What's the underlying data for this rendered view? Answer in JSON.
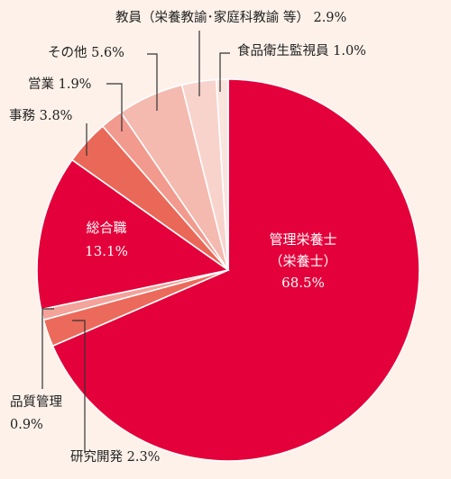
{
  "colors": {
    "background": "#fdf1e9",
    "leader": "#333333",
    "text": "#222222",
    "inside_text": "#ffffff"
  },
  "chart_data": {
    "type": "pie",
    "title": "",
    "slices": [
      {
        "label": "管理栄養士（栄養士）",
        "value": 68.5,
        "color": "#e4003a",
        "label_lines": [
          "管理栄養士",
          "（栄養士）",
          "68.5%"
        ]
      },
      {
        "label": "研究開発",
        "value": 2.3,
        "color": "#ec6a5b",
        "label_lines": [
          "研究開発 2.3%"
        ]
      },
      {
        "label": "品質管理",
        "value": 0.9,
        "color": "#f3a39a",
        "label_lines": [
          "品質管理",
          "0.9%"
        ]
      },
      {
        "label": "総合職",
        "value": 13.1,
        "color": "#e4003a",
        "label_lines": [
          "総合職",
          "13.1%"
        ]
      },
      {
        "label": "事務",
        "value": 3.8,
        "color": "#ea6858",
        "label_lines": [
          "事務 3.8%"
        ]
      },
      {
        "label": "営業",
        "value": 1.9,
        "color": "#f19a8d",
        "label_lines": [
          "営業 1.9%"
        ]
      },
      {
        "label": "その他",
        "value": 5.6,
        "color": "#f4b9af",
        "label_lines": [
          "その他 5.6%"
        ]
      },
      {
        "label": "教員（栄養教諭・家庭科教諭 等）",
        "value": 2.9,
        "color": "#f8d3cc",
        "label_lines": [
          "教員（栄養教諭･家庭科教諭 等） 2.9%"
        ]
      },
      {
        "label": "食品衛生監視員",
        "value": 1.0,
        "color": "#fae4de",
        "label_lines": [
          "食品衛生監視員 1.0%"
        ]
      }
    ]
  }
}
